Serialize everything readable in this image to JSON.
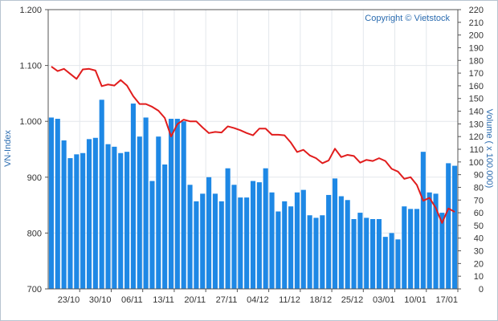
{
  "chart_data": {
    "type": "bar",
    "copyright": "Copyright © Vietstock",
    "ylabel_left": "VN-Index",
    "ylabel_right": "Volume ( x 100.000)",
    "left_axis": {
      "ylim": [
        700,
        1200
      ],
      "ticks": [
        700,
        800,
        900,
        1000,
        1100,
        1200
      ],
      "tick_labels": [
        "700",
        "800",
        "900",
        "1.000",
        "1.100",
        "1.200"
      ]
    },
    "right_axis": {
      "ylim": [
        0,
        220
      ],
      "ticks": [
        0,
        10,
        20,
        30,
        40,
        50,
        60,
        70,
        80,
        90,
        100,
        110,
        120,
        130,
        140,
        150,
        160,
        170,
        180,
        190,
        200,
        210,
        220
      ],
      "tick_labels": [
        "0",
        "10",
        "20",
        "30",
        "40",
        "50",
        "60",
        "70",
        "80",
        "90",
        "100",
        "110",
        "120",
        "130",
        "140",
        "150",
        "160",
        "170",
        "180",
        "190",
        "200",
        "210",
        "220"
      ]
    },
    "grid": true,
    "x_tick_labels": [
      {
        "label": "23/10",
        "index": 4
      },
      {
        "label": "30/10",
        "index": 9
      },
      {
        "label": "06/11",
        "index": 14
      },
      {
        "label": "13/11",
        "index": 19
      },
      {
        "label": "20/11",
        "index": 24
      },
      {
        "label": "27/11",
        "index": 29
      },
      {
        "label": "04/12",
        "index": 34
      },
      {
        "label": "11/12",
        "index": 39
      },
      {
        "label": "18/12",
        "index": 44
      },
      {
        "label": "25/12",
        "index": 49
      },
      {
        "label": "03/01",
        "index": 54
      },
      {
        "label": "10/01",
        "index": 59
      },
      {
        "label": "17/01",
        "index": 64
      }
    ],
    "series": [
      {
        "kind": "bar",
        "axis": "right",
        "color": "#1e88e5",
        "values": [
          135,
          134,
          117,
          103,
          106,
          107,
          118,
          119,
          149,
          114,
          112,
          107,
          108,
          146,
          120,
          135,
          85,
          120,
          98,
          134,
          134,
          132,
          82,
          69,
          75,
          88,
          75,
          69,
          95,
          82,
          72,
          72,
          85,
          84,
          95,
          76,
          61,
          69,
          65,
          76,
          78,
          58,
          56,
          58,
          74,
          87,
          73,
          70,
          55,
          60,
          56,
          55,
          55,
          41,
          44,
          39,
          65,
          63,
          63,
          108,
          76,
          75,
          60,
          99,
          97
        ]
      },
      {
        "kind": "line",
        "axis": "left",
        "color": "#e11d1d",
        "values": [
          1098,
          1090,
          1094,
          1085,
          1076,
          1093,
          1094,
          1091,
          1063,
          1066,
          1064,
          1074,
          1064,
          1045,
          1031,
          1031,
          1026,
          1019,
          1006,
          973,
          995,
          1003,
          1000,
          1000,
          989,
          979,
          981,
          980,
          991,
          988,
          984,
          979,
          975,
          987,
          987,
          976,
          976,
          975,
          962,
          945,
          949,
          939,
          934,
          925,
          930,
          951,
          936,
          940,
          938,
          926,
          931,
          929,
          934,
          929,
          915,
          910,
          897,
          900,
          886,
          858,
          863,
          845,
          818,
          844,
          838
        ]
      }
    ]
  }
}
